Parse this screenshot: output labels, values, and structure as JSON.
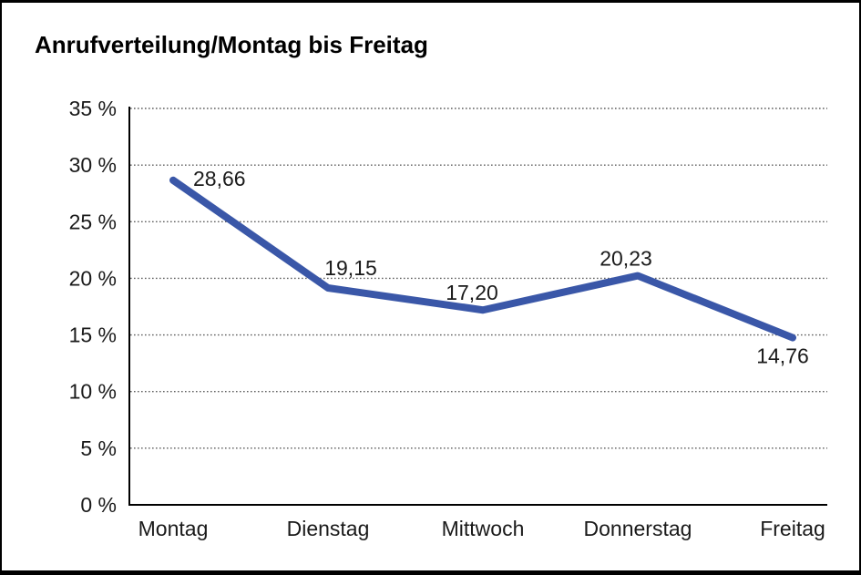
{
  "chart_data": {
    "type": "line",
    "title": "Anrufverteilung/Montag bis Freitag",
    "categories": [
      "Montag",
      "Dienstag",
      "Mittwoch",
      "Donnerstag",
      "Freitag"
    ],
    "series": [
      {
        "name": "Anrufverteilung",
        "values": [
          28.66,
          19.15,
          17.2,
          20.23,
          14.76
        ],
        "point_labels": [
          "28,66",
          "19,15",
          "17,20",
          "20,23",
          "14,76"
        ],
        "color": "#3A57A8"
      }
    ],
    "xlabel": "",
    "ylabel": "",
    "ylim": [
      0,
      35
    ],
    "y_tick_step": 5,
    "y_tick_labels": [
      "0 %",
      "5 %",
      "10 %",
      "15 %",
      "20 %",
      "25 %",
      "30 %",
      "35 %"
    ],
    "grid": "horizontal-dotted",
    "legend": "none",
    "colors": {
      "line": "#3A57A8",
      "axis": "#000000",
      "grid": "#5f5f5f",
      "text": "#1a1a1a",
      "background": "#ffffff",
      "border": "#000000"
    }
  }
}
